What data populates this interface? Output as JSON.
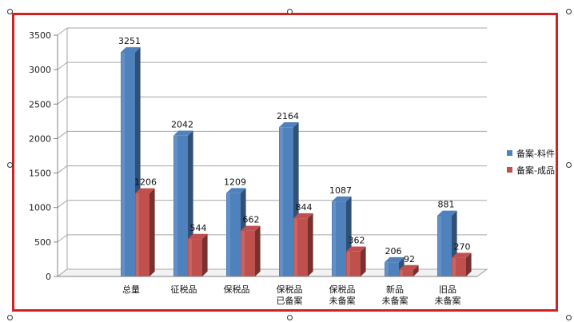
{
  "chart_data": {
    "type": "bar",
    "categories": [
      [
        "总量"
      ],
      [
        "征税品"
      ],
      [
        "保税品"
      ],
      [
        "保税品",
        "已备案"
      ],
      [
        "保税品",
        "未备案"
      ],
      [
        "新品",
        "未备案"
      ],
      [
        "旧品",
        "未备案"
      ]
    ],
    "series": [
      {
        "name": "备案-料件",
        "color": "#4f81bd",
        "values": [
          3251,
          2042,
          1209,
          2164,
          1087,
          206,
          881
        ]
      },
      {
        "name": "备案-成品",
        "color": "#c0504d",
        "values": [
          1206,
          544,
          662,
          844,
          362,
          92,
          270
        ]
      }
    ],
    "ylim": [
      0,
      3500
    ],
    "yticks": [
      0,
      500,
      1000,
      1500,
      2000,
      2500,
      3000,
      3500
    ],
    "grid": true,
    "legend_position": "right",
    "style": "3d-clustered-column"
  }
}
